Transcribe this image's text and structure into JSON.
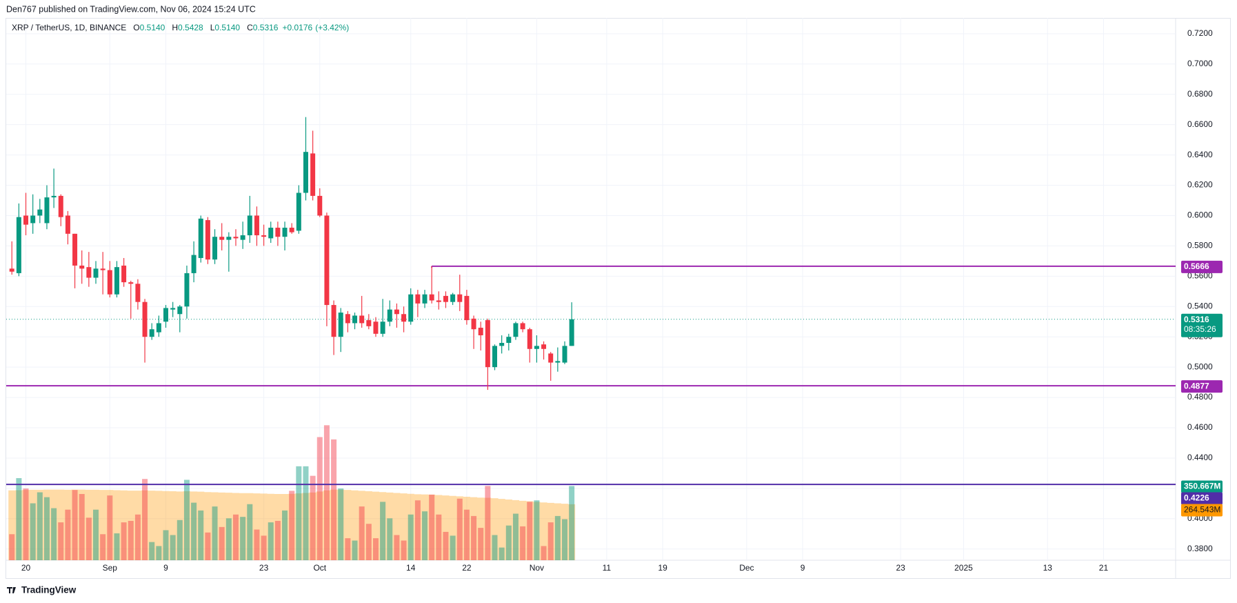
{
  "chart_data": {
    "type": "candlestick",
    "publisher": "Den767 published on TradingView.com, Nov 06, 2024 15:24 UTC",
    "symbol": "XRP / TetherUS, 1D, BINANCE",
    "legend": [
      {
        "key": "O",
        "value": 0.514,
        "label": "0.5140"
      },
      {
        "key": "H",
        "value": 0.5428,
        "label": "0.5428"
      },
      {
        "key": "L",
        "value": 0.514,
        "label": "0.5140"
      },
      {
        "key": "C",
        "value": 0.5316,
        "label": "0.5316"
      }
    ],
    "change": {
      "value": 0.0176,
      "label": "+0.0176"
    },
    "change_pct": {
      "value": 3.42,
      "label": "(+3.42%)"
    },
    "footer": "TradingView",
    "up_color": "#089981",
    "down_color": "#f23645",
    "open": [
      0.565,
      0.562,
      0.6,
      0.595,
      0.6,
      0.595,
      0.612,
      0.613,
      0.6,
      0.588,
      0.567,
      0.566,
      0.559,
      0.565,
      0.564,
      0.548,
      0.567,
      0.556,
      0.555,
      0.543,
      0.52,
      0.523,
      0.53,
      0.538,
      0.535,
      0.54,
      0.562,
      0.572,
      0.597,
      0.571,
      0.586,
      0.584,
      0.586,
      0.584,
      0.587,
      0.6,
      0.587,
      0.585,
      0.592,
      0.586,
      0.592,
      0.59,
      0.615,
      0.641,
      0.613,
      0.6,
      0.541,
      0.52,
      0.535,
      0.529,
      0.534,
      0.531,
      0.53,
      0.522,
      0.53,
      0.538,
      0.535,
      0.53,
      0.548,
      0.542,
      0.548,
      0.544,
      0.547,
      0.543,
      0.548,
      0.547,
      0.532,
      0.526,
      0.531,
      0.5,
      0.514,
      0.516,
      0.52,
      0.529,
      0.525,
      0.512,
      0.515,
      0.509,
      0.503,
      0.503,
      0.514
    ],
    "high": [
      0.583,
      0.608,
      0.615,
      0.614,
      0.611,
      0.62,
      0.631,
      0.614,
      0.603,
      0.588,
      0.577,
      0.576,
      0.57,
      0.576,
      0.57,
      0.57,
      0.572,
      0.557,
      0.558,
      0.545,
      0.529,
      0.534,
      0.541,
      0.543,
      0.541,
      0.567,
      0.583,
      0.6,
      0.599,
      0.591,
      0.595,
      0.589,
      0.591,
      0.596,
      0.613,
      0.606,
      0.594,
      0.596,
      0.596,
      0.596,
      0.595,
      0.62,
      0.665,
      0.656,
      0.618,
      0.602,
      0.544,
      0.539,
      0.537,
      0.536,
      0.547,
      0.535,
      0.533,
      0.545,
      0.544,
      0.542,
      0.54,
      0.552,
      0.551,
      0.551,
      0.5666,
      0.55,
      0.55,
      0.549,
      0.561,
      0.551,
      0.534,
      0.53,
      0.532,
      0.515,
      0.521,
      0.522,
      0.53,
      0.53,
      0.526,
      0.521,
      0.517,
      0.51,
      0.513,
      0.517,
      0.5428
    ],
    "low": [
      0.561,
      0.56,
      0.587,
      0.588,
      0.595,
      0.591,
      0.605,
      0.593,
      0.581,
      0.552,
      0.555,
      0.553,
      0.555,
      0.548,
      0.546,
      0.546,
      0.553,
      0.532,
      0.538,
      0.503,
      0.518,
      0.52,
      0.526,
      0.533,
      0.523,
      0.532,
      0.556,
      0.569,
      0.568,
      0.568,
      0.577,
      0.563,
      0.58,
      0.578,
      0.582,
      0.58,
      0.58,
      0.582,
      0.58,
      0.577,
      0.588,
      0.588,
      0.61,
      0.61,
      0.599,
      0.527,
      0.508,
      0.51,
      0.523,
      0.525,
      0.526,
      0.525,
      0.52,
      0.52,
      0.527,
      0.526,
      0.523,
      0.528,
      0.533,
      0.539,
      0.542,
      0.538,
      0.539,
      0.541,
      0.537,
      0.528,
      0.512,
      0.511,
      0.485,
      0.498,
      0.509,
      0.511,
      0.518,
      0.523,
      0.503,
      0.503,
      0.505,
      0.491,
      0.497,
      0.502,
      0.514
    ],
    "close": [
      0.563,
      0.599,
      0.594,
      0.6,
      0.604,
      0.612,
      0.613,
      0.599,
      0.588,
      0.567,
      0.565,
      0.559,
      0.565,
      0.564,
      0.548,
      0.566,
      0.556,
      0.555,
      0.543,
      0.52,
      0.525,
      0.529,
      0.539,
      0.539,
      0.54,
      0.562,
      0.574,
      0.598,
      0.571,
      0.586,
      0.584,
      0.586,
      0.585,
      0.587,
      0.6,
      0.587,
      0.586,
      0.592,
      0.586,
      0.592,
      0.589,
      0.615,
      0.642,
      0.613,
      0.6,
      0.541,
      0.52,
      0.536,
      0.529,
      0.534,
      0.529,
      0.527,
      0.522,
      0.53,
      0.538,
      0.535,
      0.53,
      0.548,
      0.542,
      0.548,
      0.544,
      0.543,
      0.543,
      0.548,
      0.543,
      0.531,
      0.525,
      0.521,
      0.5,
      0.514,
      0.516,
      0.52,
      0.529,
      0.525,
      0.512,
      0.514,
      0.512,
      0.503,
      0.504,
      0.514,
      0.5316
    ],
    "volume": [
      123,
      388,
      339,
      269,
      321,
      298,
      246,
      179,
      239,
      332,
      313,
      201,
      239,
      123,
      306,
      127,
      179,
      186,
      216,
      384,
      86,
      67,
      142,
      119,
      190,
      380,
      272,
      235,
      131,
      254,
      157,
      198,
      216,
      205,
      265,
      145,
      116,
      179,
      186,
      235,
      328,
      444,
      444,
      399,
      582,
      638,
      571,
      339,
      104,
      93,
      254,
      172,
      104,
      276,
      198,
      119,
      93,
      216,
      283,
      231,
      310,
      216,
      134,
      116,
      291,
      239,
      209,
      153,
      351,
      119,
      60,
      164,
      220,
      160,
      276,
      283,
      67,
      179,
      209,
      194,
      350.667
    ],
    "volume_label": "350.667M",
    "volume_ma": [
      330,
      331,
      332,
      333,
      333,
      334,
      334,
      334,
      333,
      334,
      334,
      333,
      333,
      332,
      332,
      331,
      330,
      329,
      329,
      330,
      329,
      328,
      327,
      326,
      325,
      326,
      325,
      324,
      322,
      321,
      320,
      319,
      318,
      317,
      317,
      316,
      315,
      314,
      313,
      313,
      314,
      316,
      318,
      320,
      325,
      330,
      334,
      334,
      332,
      330,
      328,
      326,
      324,
      322,
      320,
      318,
      316,
      314,
      312,
      311,
      310,
      308,
      306,
      304,
      302,
      300,
      298,
      296,
      295,
      293,
      290,
      287,
      284,
      281,
      279,
      276,
      273,
      271,
      269,
      267,
      264.543
    ],
    "volume_ma_label": "264.543M",
    "volume_ma_color": "#ff9800",
    "y2lim": [
      0,
      2563
    ],
    "levels": [
      {
        "value": 0.5666,
        "label": "0.5666",
        "from": 60,
        "color": "#9c27b0"
      },
      {
        "value": 0.4877,
        "label": "0.4877",
        "color": "#9c27b0"
      },
      {
        "value": 0.4226,
        "label": "0.4226",
        "color": "#512da8"
      }
    ],
    "last": {
      "value": 0.5316,
      "label": "0.5316",
      "countdown": "08:35:26"
    },
    "xlim": [
      -0.81,
      166.3
    ],
    "xticks": [
      {
        "value": 2,
        "label": "20"
      },
      {
        "value": 14,
        "label": "Sep"
      },
      {
        "value": 22,
        "label": "9"
      },
      {
        "value": 36,
        "label": "23"
      },
      {
        "value": 44,
        "label": "Oct"
      },
      {
        "value": 57,
        "label": "14"
      },
      {
        "value": 65,
        "label": "22"
      },
      {
        "value": 75,
        "label": "Nov"
      },
      {
        "value": 85,
        "label": "11"
      },
      {
        "value": 93,
        "label": "19"
      },
      {
        "value": 105,
        "label": "Dec"
      },
      {
        "value": 113,
        "label": "9"
      },
      {
        "value": 127,
        "label": "23"
      },
      {
        "value": 136,
        "label": "2025"
      },
      {
        "value": 148,
        "label": "13"
      },
      {
        "value": 156,
        "label": "21"
      }
    ],
    "ylim": [
      0.3726,
      0.7304
    ],
    "yticks": [
      {
        "value": 0.38,
        "label": "0.3800"
      },
      {
        "value": 0.4,
        "label": "0.4000"
      },
      {
        "value": 0.42,
        "label": "0.4200"
      },
      {
        "value": 0.44,
        "label": "0.4400"
      },
      {
        "value": 0.46,
        "label": "0.4600"
      },
      {
        "value": 0.48,
        "label": "0.4800"
      },
      {
        "value": 0.5,
        "label": "0.5000"
      },
      {
        "value": 0.52,
        "label": "0.5200"
      },
      {
        "value": 0.54,
        "label": "0.5400"
      },
      {
        "value": 0.56,
        "label": "0.5600"
      },
      {
        "value": 0.58,
        "label": "0.5800"
      },
      {
        "value": 0.6,
        "label": "0.6000"
      },
      {
        "value": 0.62,
        "label": "0.6200"
      },
      {
        "value": 0.64,
        "label": "0.6400"
      },
      {
        "value": 0.66,
        "label": "0.6600"
      },
      {
        "value": 0.68,
        "label": "0.6800"
      },
      {
        "value": 0.7,
        "label": "0.7000"
      },
      {
        "value": 0.72,
        "label": "0.7200"
      }
    ],
    "grid": true
  }
}
